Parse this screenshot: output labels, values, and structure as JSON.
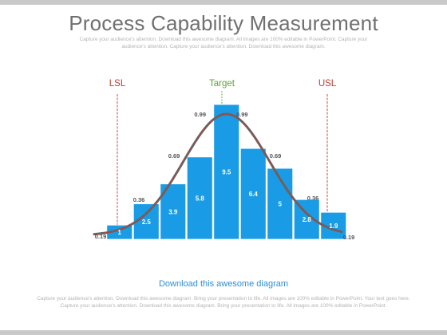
{
  "header": {
    "title": "Process Capability Measurement",
    "subtitle": "Capture your audience's attention. Download this awesome diagram. All images are 100% editable in PowerPoint. Capture your audience's attention. Capture your audience's attention. Download this awesome diagram."
  },
  "footer": {
    "title": "Download this awesome diagram",
    "text": "Capture your audience's attention. Download this awesome diagram. Bring your presentation to life. All images are 100% editable in PowerPoint. Your text goes here. Capture your audience's attention. Download this awesome diagram. Bring your presentation to life. All images are 100% editable in PowerPoint."
  },
  "colors": {
    "bar": "#1a9be5",
    "bar_edge": "#ffffff",
    "curve": "#666666",
    "curve_dash": "#c0392b",
    "limit": "#c0392b",
    "target": "#5aa52e",
    "value_label": "#ffffff",
    "point_label": "#555555"
  },
  "chart_data": {
    "type": "bar",
    "bar_values": [
      "1",
      "2.5",
      "3.9",
      "5.8",
      "9.5",
      "6.4",
      "5",
      "2.8",
      "1.9"
    ],
    "heights": [
      1,
      2.5,
      3.9,
      5.8,
      9.5,
      6.4,
      5,
      2.8,
      1.9
    ],
    "curve_labels": [
      "0.19",
      "0.36",
      "0.69",
      "0.99",
      "0.99",
      "0.69",
      "0.36",
      "0.19"
    ],
    "markers": {
      "lsl": "LSL",
      "target": "Target",
      "usl": "USL"
    },
    "ylim": [
      0,
      10
    ]
  }
}
